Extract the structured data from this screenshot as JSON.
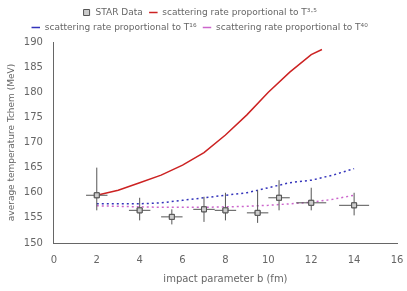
{
  "chart_data": {
    "type": "line",
    "xlabel": "impact parameter b (fm)",
    "ylabel": "average temperature Tchem (MeV)",
    "xlim": [
      0,
      16
    ],
    "ylim": [
      150,
      190
    ],
    "xticks": [
      0,
      2,
      4,
      6,
      8,
      10,
      12,
      14,
      16
    ],
    "yticks": [
      150,
      155,
      160,
      165,
      170,
      175,
      180,
      185,
      190
    ],
    "grid": false,
    "legend": "top",
    "series": [
      {
        "name": "scattering rate proportional to T³·⁵",
        "color": "#cc2222",
        "line_style": "solid",
        "x": [
          2.0,
          3.0,
          4.0,
          5.0,
          6.0,
          7.0,
          8.0,
          9.0,
          10.0,
          11.0,
          12.0,
          12.5
        ],
        "values": [
          159.5,
          160.5,
          162.0,
          163.5,
          165.5,
          168.0,
          171.5,
          175.5,
          180.0,
          184.0,
          187.5,
          188.5
        ]
      },
      {
        "name": "scattering rate proportional to T¹⁶",
        "color": "#3333bb",
        "line_style": "dotted",
        "x": [
          2.0,
          3.0,
          4.0,
          5.0,
          6.0,
          7.0,
          8.0,
          9.0,
          10.0,
          11.0,
          12.0,
          13.0,
          14.0
        ],
        "values": [
          157.8,
          157.8,
          157.8,
          158.0,
          158.5,
          159.0,
          159.5,
          160.0,
          161.0,
          162.0,
          162.5,
          163.5,
          164.8
        ]
      },
      {
        "name": "scattering rate proportional to T⁴⁰",
        "color": "#cc66cc",
        "line_style": "dotted",
        "x": [
          2.0,
          3.0,
          4.0,
          5.0,
          6.0,
          7.0,
          8.0,
          9.0,
          10.0,
          11.0,
          12.0,
          13.0,
          14.0
        ],
        "values": [
          157.4,
          157.3,
          157.2,
          157.1,
          157.1,
          157.1,
          157.2,
          157.3,
          157.5,
          157.8,
          158.1,
          158.7,
          159.5
        ]
      },
      {
        "name": "STAR Data",
        "type": "scatter",
        "marker": "square",
        "color": "#555555",
        "x": [
          2.0,
          4.0,
          5.5,
          7.0,
          8.0,
          9.5,
          10.5,
          12.0,
          14.0
        ],
        "values": [
          159.5,
          156.5,
          155.2,
          156.7,
          156.5,
          156.0,
          159.0,
          158.0,
          157.5
        ],
        "xerr": [
          0.5,
          0.5,
          0.5,
          0.5,
          0.5,
          0.5,
          0.5,
          0.7,
          0.7
        ],
        "yerr_lo": [
          3.0,
          2.0,
          1.5,
          2.5,
          2.0,
          2.0,
          2.5,
          1.5,
          2.0
        ],
        "yerr_hi": [
          5.5,
          2.5,
          1.5,
          2.5,
          3.5,
          4.5,
          3.5,
          3.0,
          2.5
        ]
      }
    ]
  }
}
